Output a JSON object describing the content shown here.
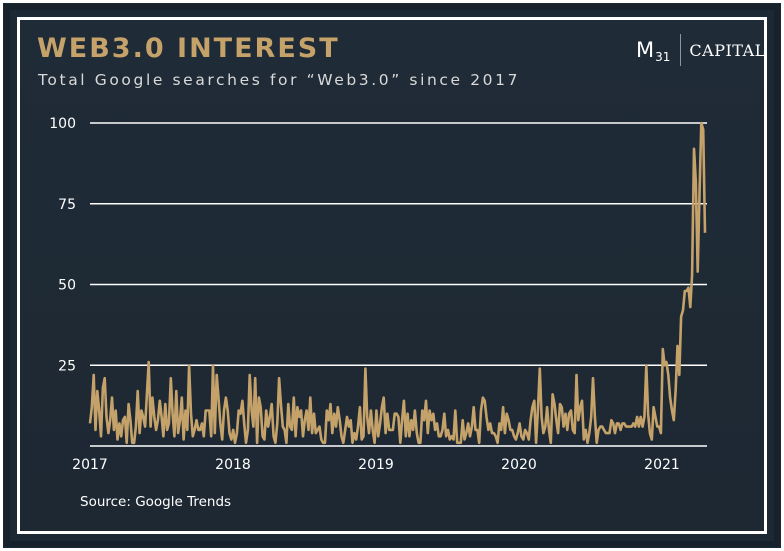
{
  "header": {
    "title": "WEB3.0 INTEREST",
    "subtitle": "Total Google searches for “Web3.0” since 2017"
  },
  "logo": {
    "m": "M",
    "sub": "31",
    "capital": "CAPITAL"
  },
  "source": "Source: Google Trends",
  "colors": {
    "line": "#c4a26a",
    "grid": "#ffffff",
    "background": "#1f2b36",
    "title": "#c4a26a"
  },
  "chart_data": {
    "type": "line",
    "title": "WEB3.0 INTEREST",
    "subtitle": "Total Google searches for “Web3.0” since 2017",
    "xlabel": "",
    "ylabel": "",
    "ylim": [
      0,
      100
    ],
    "y_ticks": [
      "100",
      "75",
      "50",
      "25"
    ],
    "x_ticks": [
      "2017",
      "2018",
      "2019",
      "2020",
      "2021"
    ],
    "x_range": [
      "2017-01",
      "2021-05"
    ],
    "grid": "horizontal",
    "series": [
      {
        "values": [
          7,
          12,
          22,
          5,
          17,
          11,
          3,
          18,
          21,
          9,
          4,
          8,
          15,
          5,
          11,
          2,
          7,
          3,
          8,
          9,
          1,
          13,
          8,
          1,
          1,
          6,
          17,
          4,
          11,
          9,
          6,
          16,
          26,
          6,
          15,
          9,
          5,
          8,
          14,
          9,
          3,
          13,
          5,
          7,
          21,
          10,
          3,
          17,
          4,
          8,
          15,
          2,
          11,
          5,
          25,
          10,
          3,
          5,
          8,
          5,
          5,
          7,
          3,
          11,
          11,
          11,
          3,
          25,
          4,
          22,
          15,
          7,
          2,
          11,
          15,
          11,
          4,
          2,
          5,
          1,
          4,
          11,
          10,
          14,
          7,
          1,
          5,
          22,
          11,
          6,
          21,
          1,
          15,
          12,
          3,
          2,
          11,
          6,
          9,
          13,
          3,
          1,
          7,
          21,
          13,
          6,
          5,
          1,
          13,
          6,
          5,
          15,
          3,
          12,
          9,
          11,
          3,
          8,
          11,
          5,
          15,
          4,
          10,
          4,
          5,
          6,
          2,
          1,
          1,
          11,
          8,
          13,
          4,
          10,
          6,
          12,
          8,
          3,
          1,
          5,
          9,
          6,
          8,
          1,
          4,
          2,
          6,
          12,
          2,
          3,
          24,
          9,
          4,
          11,
          5,
          1,
          11,
          3,
          7,
          12,
          15,
          4,
          10,
          5,
          5,
          5,
          10,
          10,
          9,
          1,
          8,
          14,
          3,
          10,
          3,
          8,
          5,
          11,
          4,
          1,
          1,
          11,
          8,
          14,
          4,
          11,
          8,
          10,
          5,
          7,
          3,
          3,
          5,
          10,
          3,
          5,
          2,
          3,
          2,
          11,
          1,
          1,
          1,
          8,
          2,
          4,
          7,
          3,
          6,
          12,
          5,
          5,
          1,
          11,
          15,
          14,
          9,
          5,
          7,
          4,
          4,
          3,
          1,
          7,
          5,
          12,
          4,
          10,
          8,
          5,
          5,
          3,
          2,
          4,
          7,
          3,
          2,
          5,
          4,
          2,
          8,
          12,
          14,
          1,
          11,
          24,
          9,
          4,
          6,
          12,
          5,
          1,
          16,
          13,
          8,
          4,
          13,
          12,
          6,
          10,
          5,
          10,
          11,
          5,
          4,
          22,
          8,
          12,
          14,
          2,
          5,
          1,
          4,
          9,
          21,
          9,
          1,
          5,
          6,
          6,
          5,
          4,
          4,
          4,
          8,
          7,
          4,
          7,
          7,
          5,
          7,
          7,
          6,
          6,
          6,
          6,
          7,
          6,
          9,
          6,
          9,
          6,
          9,
          25,
          10,
          4,
          2,
          12,
          9,
          6,
          6,
          4,
          30,
          25,
          26,
          22,
          15,
          11,
          8,
          17,
          31,
          22,
          40,
          42,
          48,
          48,
          49,
          43,
          53,
          92,
          82,
          54,
          78,
          100,
          98,
          66
        ]
      }
    ]
  }
}
